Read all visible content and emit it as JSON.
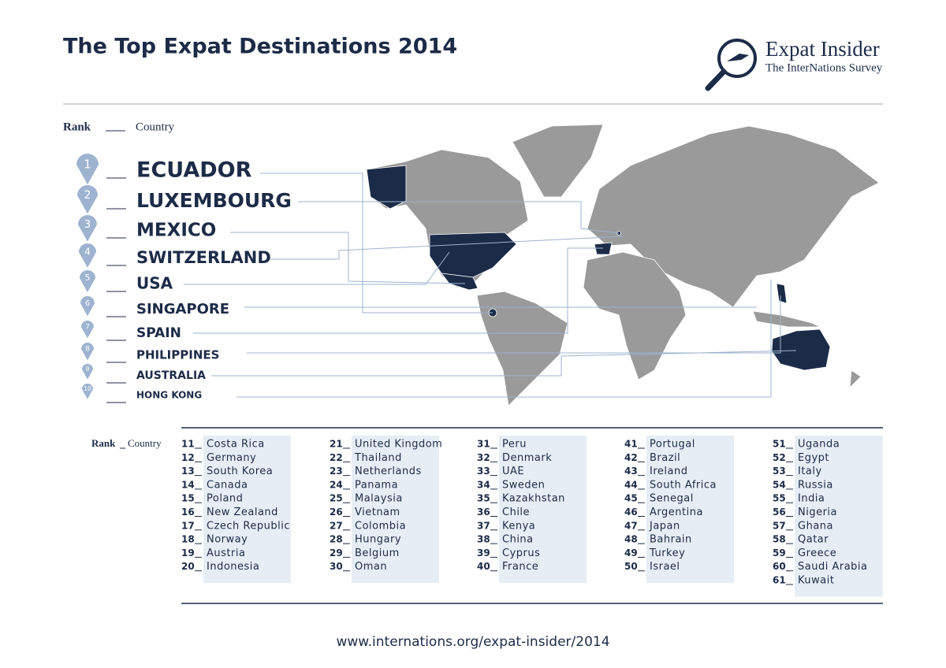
{
  "header": {
    "title": "The Top Expat Destinations 2014",
    "logo_title": "Expat Insider",
    "logo_subtitle": "The InterNations Survey"
  },
  "legend": {
    "rank": "Rank",
    "country": "Country"
  },
  "top10": [
    {
      "rank": "1",
      "country": "ECUADOR"
    },
    {
      "rank": "2",
      "country": "LUXEMBOURG"
    },
    {
      "rank": "3",
      "country": "MEXICO"
    },
    {
      "rank": "4",
      "country": "SWITZERLAND"
    },
    {
      "rank": "5",
      "country": "USA"
    },
    {
      "rank": "6",
      "country": "SINGAPORE"
    },
    {
      "rank": "7",
      "country": "SPAIN"
    },
    {
      "rank": "8",
      "country": "PHILIPPINES"
    },
    {
      "rank": "9",
      "country": "AUSTRALIA"
    },
    {
      "rank": "10",
      "country": "HONG KONG"
    }
  ],
  "list_legend": {
    "rank": "Rank",
    "country": "Country"
  },
  "ranking": [
    {
      "rank": "11",
      "country": "Costa Rica"
    },
    {
      "rank": "12",
      "country": "Germany"
    },
    {
      "rank": "13",
      "country": "South Korea"
    },
    {
      "rank": "14",
      "country": "Canada"
    },
    {
      "rank": "15",
      "country": "Poland"
    },
    {
      "rank": "16",
      "country": "New Zealand"
    },
    {
      "rank": "17",
      "country": "Czech Republic"
    },
    {
      "rank": "18",
      "country": "Norway"
    },
    {
      "rank": "19",
      "country": "Austria"
    },
    {
      "rank": "20",
      "country": "Indonesia"
    },
    {
      "rank": "21",
      "country": "United Kingdom"
    },
    {
      "rank": "22",
      "country": "Thailand"
    },
    {
      "rank": "23",
      "country": "Netherlands"
    },
    {
      "rank": "24",
      "country": "Panama"
    },
    {
      "rank": "25",
      "country": "Malaysia"
    },
    {
      "rank": "26",
      "country": "Vietnam"
    },
    {
      "rank": "27",
      "country": "Colombia"
    },
    {
      "rank": "28",
      "country": "Hungary"
    },
    {
      "rank": "29",
      "country": "Belgium"
    },
    {
      "rank": "30",
      "country": "Oman"
    },
    {
      "rank": "31",
      "country": "Peru"
    },
    {
      "rank": "32",
      "country": "Denmark"
    },
    {
      "rank": "33",
      "country": "UAE"
    },
    {
      "rank": "34",
      "country": "Sweden"
    },
    {
      "rank": "35",
      "country": "Kazakhstan"
    },
    {
      "rank": "36",
      "country": "Chile"
    },
    {
      "rank": "37",
      "country": "Kenya"
    },
    {
      "rank": "38",
      "country": "China"
    },
    {
      "rank": "39",
      "country": "Cyprus"
    },
    {
      "rank": "40",
      "country": "France"
    },
    {
      "rank": "41",
      "country": "Portugal"
    },
    {
      "rank": "42",
      "country": "Brazil"
    },
    {
      "rank": "43",
      "country": "Ireland"
    },
    {
      "rank": "44",
      "country": "South Africa"
    },
    {
      "rank": "45",
      "country": "Senegal"
    },
    {
      "rank": "46",
      "country": "Argentina"
    },
    {
      "rank": "47",
      "country": "Japan"
    },
    {
      "rank": "48",
      "country": "Bahrain"
    },
    {
      "rank": "49",
      "country": "Turkey"
    },
    {
      "rank": "50",
      "country": "Israel"
    },
    {
      "rank": "51",
      "country": "Uganda"
    },
    {
      "rank": "52",
      "country": "Egypt"
    },
    {
      "rank": "53",
      "country": "Italy"
    },
    {
      "rank": "54",
      "country": "Russia"
    },
    {
      "rank": "55",
      "country": "India"
    },
    {
      "rank": "56",
      "country": "Nigeria"
    },
    {
      "rank": "57",
      "country": "Ghana"
    },
    {
      "rank": "58",
      "country": "Qatar"
    },
    {
      "rank": "59",
      "country": "Greece"
    },
    {
      "rank": "60",
      "country": "Saudi Arabia"
    },
    {
      "rank": "61",
      "country": "Kuwait"
    }
  ],
  "footer": {
    "url": "www.internations.org/expat-insider/2014"
  }
}
